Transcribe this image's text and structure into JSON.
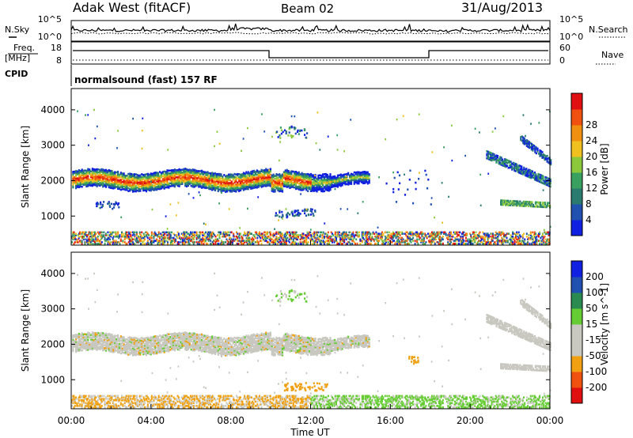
{
  "header": {
    "station": "Adak West (fitACF)",
    "beam": "Beam 02",
    "date": "31/Aug/2013"
  },
  "panels": {
    "nsky": {
      "left_label": "N.Sky",
      "right_label": "N.Search",
      "left_ticks": [
        "10^5",
        "10^0"
      ],
      "right_ticks": [
        "10^5",
        "10^0"
      ]
    },
    "freq": {
      "left_label_1": "Freq.",
      "left_label_2": "[MHz]",
      "right_label": "Nave",
      "left_ticks": [
        "18",
        "8"
      ],
      "right_ticks": [
        "60",
        "0"
      ]
    },
    "cpid": {
      "label": "CPID",
      "text": "normalsound (fast) 157 RF"
    }
  },
  "colors": {
    "power": [
      "#1020e0",
      "#2050b0",
      "#2a7a70",
      "#3aa060",
      "#8cc83c",
      "#f0c020",
      "#f09010",
      "#f05010",
      "#e01010"
    ],
    "velocity": [
      "#e01010",
      "#f05010",
      "#f0a010",
      "#c8c8c0",
      "#c8c8c0",
      "#66cc33",
      "#2a8a50",
      "#2050b0",
      "#1020e0"
    ]
  },
  "chart_data": [
    {
      "type": "heatmap",
      "name": "power",
      "ylabel": "Slant Range [km]",
      "yticks": [
        1000,
        2000,
        3000,
        4000
      ],
      "ylim": [
        180,
        4600
      ],
      "xlim": [
        0,
        24
      ],
      "colorbar": {
        "label": "Power [dB]",
        "ticks": [
          "4",
          "8",
          "12",
          "16",
          "20",
          "24",
          "28"
        ]
      },
      "features": [
        {
          "desc": "main echo band",
          "t_start": 0,
          "t_end": 15.0,
          "range_center_km": 2050,
          "width_km": 350,
          "level": "high"
        },
        {
          "desc": "late-day arc",
          "t_start": 20.8,
          "t_end": 24,
          "range_start_km": 2800,
          "range_end_km": 1950,
          "level": "low"
        },
        {
          "desc": "late-day lower band",
          "t_start": 21.5,
          "t_end": 24,
          "range_center_km": 1380,
          "level": "low"
        },
        {
          "desc": "near-range clutter",
          "t_start": 0,
          "t_end": 24,
          "range_center_km": 300,
          "level": "mixed"
        }
      ]
    },
    {
      "type": "heatmap",
      "name": "velocity",
      "ylabel": "Slant Range [km]",
      "xlabel": "Time UT",
      "yticks": [
        1000,
        2000,
        3000,
        4000
      ],
      "xticks": [
        "00:00",
        "04:00",
        "08:00",
        "12:00",
        "16:00",
        "20:00",
        "00:00"
      ],
      "ylim": [
        180,
        4600
      ],
      "xlim": [
        0,
        24
      ],
      "colorbar": {
        "label": "Velocity [m s^-1]",
        "ticks": [
          "200",
          "100",
          "50",
          "15",
          "-15",
          "-50",
          "-100",
          "-200"
        ]
      },
      "features": [
        {
          "desc": "main echo band",
          "t_start": 0,
          "t_end": 15.0,
          "range_center_km": 2050,
          "velocity": "near zero"
        },
        {
          "desc": "receding patch",
          "t_start": 10.5,
          "t_end": 12.8,
          "range_center_km": 850,
          "velocity": "-50"
        },
        {
          "desc": "near-range flow",
          "t_start": 12,
          "t_end": 24,
          "range_center_km": 250,
          "velocity": "50"
        }
      ]
    }
  ]
}
